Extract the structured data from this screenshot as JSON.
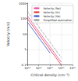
{
  "chart_data": {
    "type": "line",
    "x_label": "Critical density (cm⁻³)",
    "y_label": "Velocity (m/s)",
    "log": true,
    "grid": true,
    "legend": "top-right",
    "xlim": [
      1e+18,
      1e+22
    ],
    "ylim": [
      0.1,
      1000
    ],
    "xticks": [
      {
        "value": 1e+18,
        "label": "10¹⁸"
      },
      {
        "value": 1e+19,
        "label": "10¹⁹"
      },
      {
        "value": 1e+20,
        "label": "10²⁰"
      },
      {
        "value": 1e+21,
        "label": "10²¹"
      },
      {
        "value": 1e+22,
        "label": "10²²"
      }
    ],
    "yticks": [
      0.1,
      1,
      10,
      100,
      1000
    ],
    "x": [
      1e+18,
      1e+19,
      1e+20,
      1e+21,
      1e+22
    ],
    "series": [
      {
        "name": "Velocity (Ne)",
        "color": "#e8489a",
        "line_style": "solid",
        "values": [
          150,
          15,
          1.5,
          0.15,
          null
        ]
      },
      {
        "name": "Velocity (Ar)",
        "color": "#e03030",
        "line_style": "solid",
        "values": [
          100,
          10,
          1,
          0.1,
          null
        ]
      },
      {
        "name": "Velocity (Xe)",
        "color": "#3050d0",
        "line_style": "solid",
        "values": [
          60,
          6,
          0.6,
          null,
          null
        ]
      },
      {
        "name": "Simplified estimation",
        "color": "#909090",
        "line_style": "dashed",
        "values": [
          300,
          30,
          3,
          0.3,
          null
        ]
      }
    ]
  }
}
